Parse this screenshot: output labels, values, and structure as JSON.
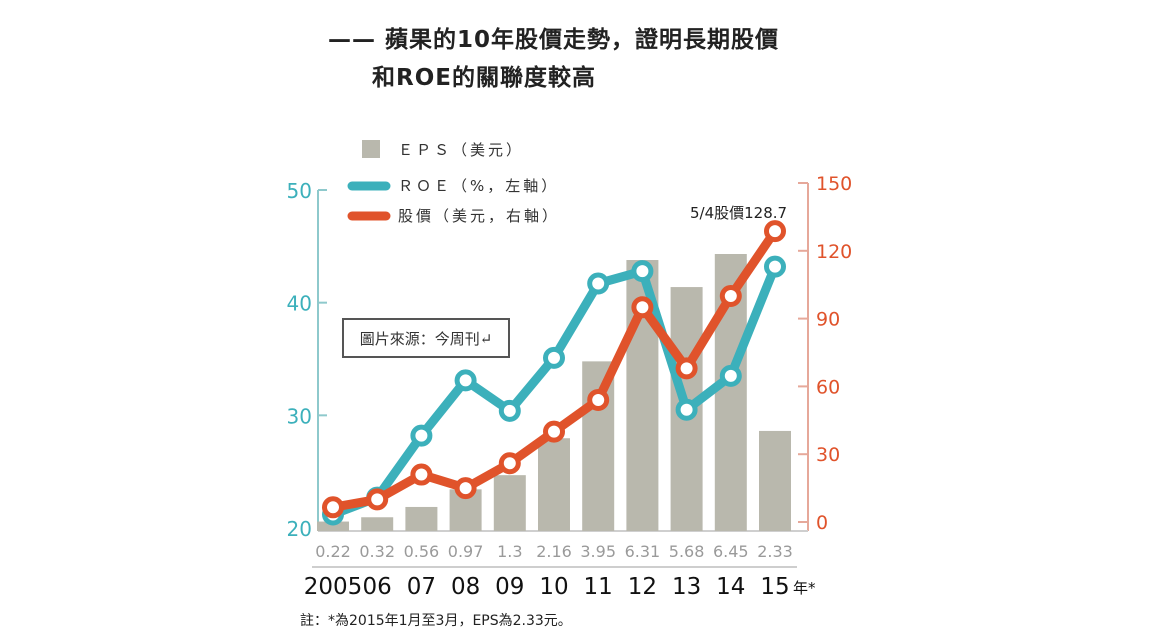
{
  "title": {
    "line1": "—— 蘋果的10年股價走勢，證明長期股價",
    "line2": "和ROE的關聯度較高"
  },
  "source_label": "圖片來源：今周刊↵",
  "note": "註：*為2015年1月至3月，EPS為2.33元。",
  "annotation": "5/4股價128.7",
  "year_suffix": "年*",
  "colors": {
    "eps": "#b9b8ad",
    "roe": "#3cb0bb",
    "price": "#e0532b",
    "left_axis": "#8ec9cc",
    "right_axis": "#e6a89a",
    "eps_label": "#9a9a9a"
  },
  "chart_data": {
    "type": "bar",
    "title": "蘋果的10年股價走勢，證明長期股價和ROE的關聯度較高",
    "categories": [
      "2005",
      "06",
      "07",
      "08",
      "09",
      "10",
      "11",
      "12",
      "13",
      "14",
      "15"
    ],
    "series": [
      {
        "name": "EPS（美元）",
        "type": "bar",
        "axis": "eps",
        "values": [
          0.22,
          0.32,
          0.56,
          0.97,
          1.3,
          2.16,
          3.95,
          6.31,
          5.68,
          6.45,
          2.33
        ],
        "value_labels": [
          "0.22",
          "0.32",
          "0.56",
          "0.97",
          "1.3",
          "2.16",
          "3.95",
          "6.31",
          "5.68",
          "6.45",
          "2.33"
        ]
      },
      {
        "name": "ROE（%，左軸）",
        "type": "line",
        "axis": "left",
        "values": [
          21.2,
          22.7,
          28.2,
          33.1,
          30.4,
          35.1,
          41.7,
          42.8,
          30.5,
          33.5,
          43.2
        ]
      },
      {
        "name": "股價（美元，右軸）",
        "type": "line",
        "axis": "right",
        "values": [
          6.5,
          10,
          21,
          15,
          26,
          40,
          54,
          95,
          68,
          100,
          128.7
        ]
      }
    ],
    "left_axis": {
      "ticks": [
        20,
        30,
        40,
        50
      ],
      "range": [
        20,
        50
      ]
    },
    "right_axis": {
      "ticks": [
        0,
        30,
        60,
        90,
        120,
        150
      ],
      "range": [
        0,
        150
      ]
    },
    "eps_range": [
      0,
      7
    ],
    "legend": [
      {
        "label": "ＥＰＳ（美元）",
        "kind": "square"
      },
      {
        "label": "ＲＯＥ（%，左軸）",
        "kind": "line"
      },
      {
        "label": "股價（美元，右軸）",
        "kind": "line"
      }
    ],
    "legend_position": "top-left",
    "grid": false
  }
}
